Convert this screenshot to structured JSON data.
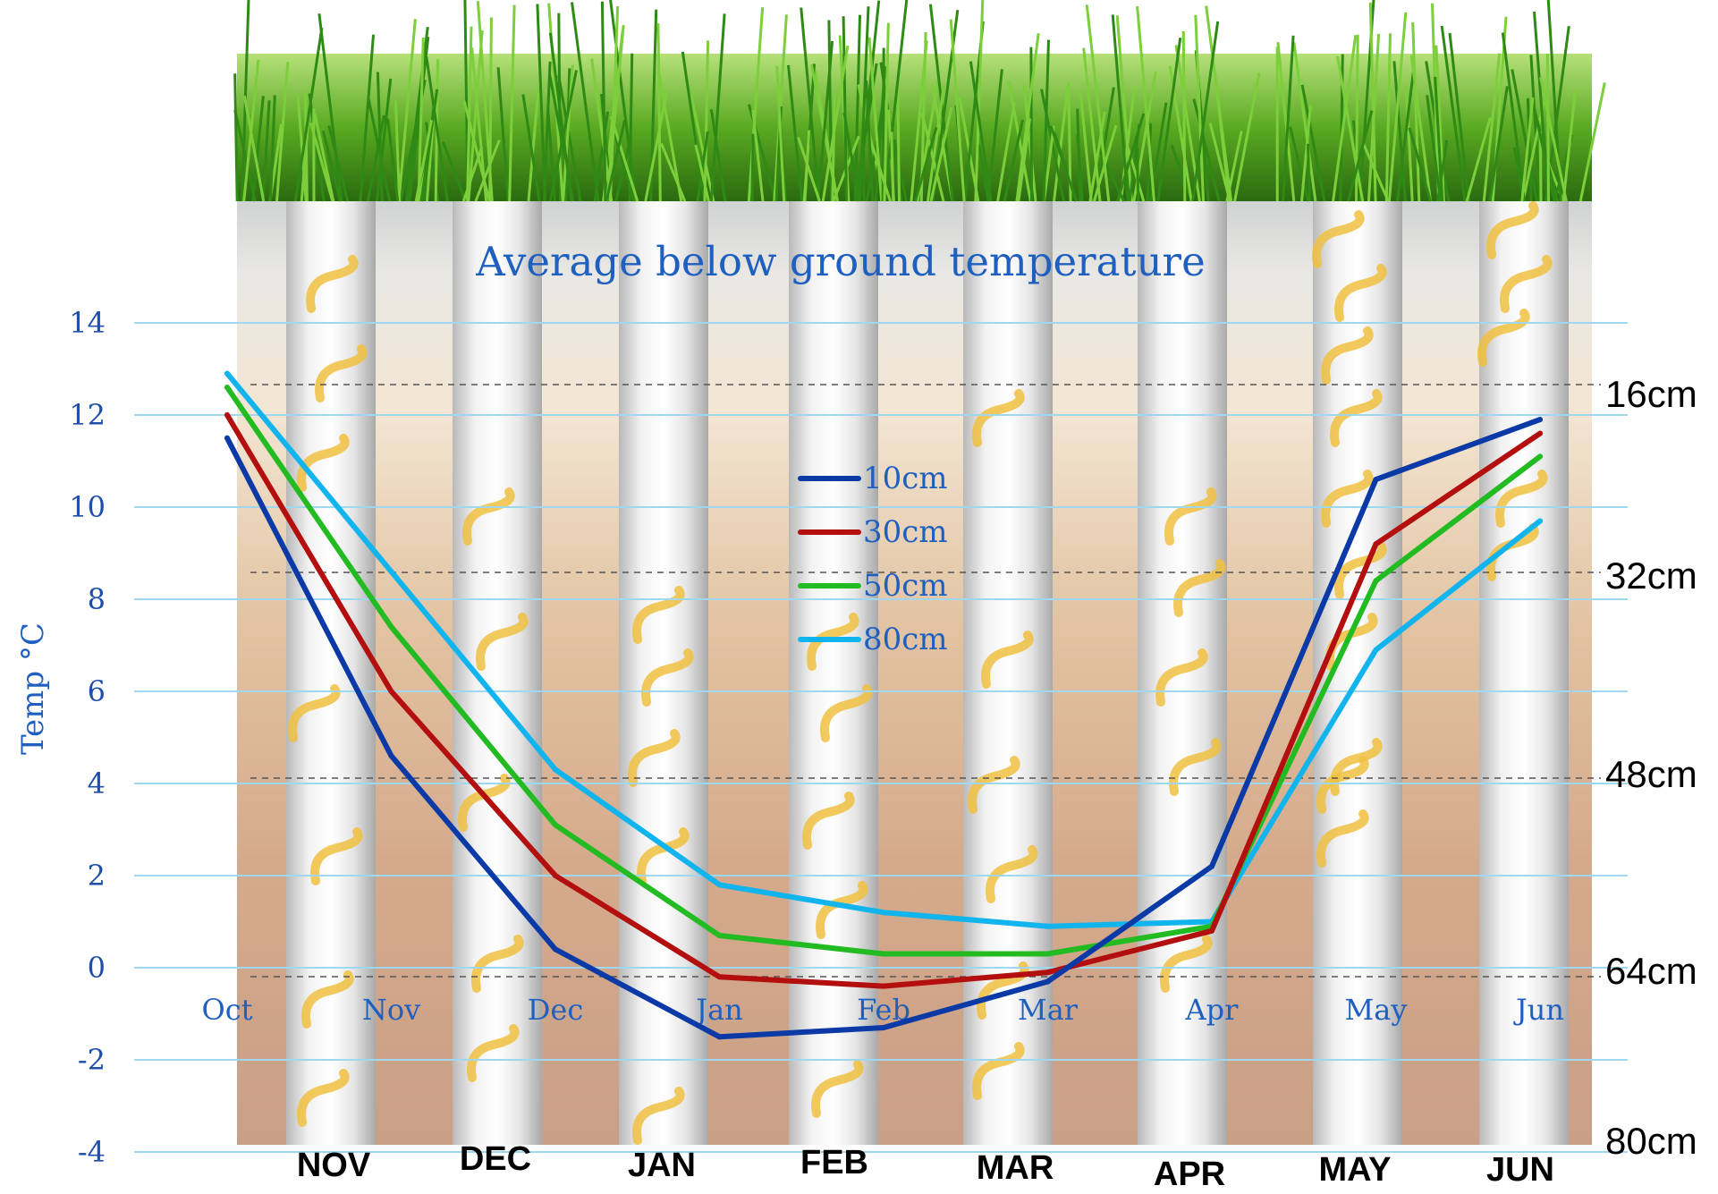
{
  "chart_data": {
    "type": "line",
    "title": "Average below ground temperature",
    "ylabel": "Temp °C",
    "xlabel": "",
    "ylim": [
      -4,
      14
    ],
    "yticks": [
      14,
      12,
      10,
      8,
      6,
      4,
      2,
      0,
      -2,
      -4
    ],
    "categories": [
      "Oct",
      "Nov",
      "Dec",
      "Jan",
      "Feb",
      "Mar",
      "Apr",
      "May",
      "Jun"
    ],
    "series": [
      {
        "name": "10cm",
        "color": "#0b3aa6",
        "values": [
          11.5,
          4.6,
          0.4,
          -1.5,
          -1.3,
          -0.3,
          2.2,
          10.6,
          11.9
        ]
      },
      {
        "name": "30cm",
        "color": "#b30f0f",
        "values": [
          12.0,
          6.0,
          2.0,
          -0.2,
          -0.4,
          -0.1,
          0.8,
          9.2,
          11.6
        ]
      },
      {
        "name": "50cm",
        "color": "#22bb22",
        "values": [
          12.6,
          7.4,
          3.1,
          0.7,
          0.3,
          0.3,
          0.9,
          8.4,
          11.1
        ]
      },
      {
        "name": "80cm",
        "color": "#12b4ee",
        "values": [
          12.9,
          8.6,
          4.3,
          1.8,
          1.2,
          0.9,
          1.0,
          6.9,
          9.7
        ]
      }
    ],
    "grid": true,
    "legend_position": "center"
  },
  "month_labels": [
    "NOV",
    "DEC",
    "JAN",
    "FEB",
    "MAR",
    "APR",
    "MAY",
    "JUN"
  ],
  "depth_labels": [
    "16cm",
    "32cm",
    "48cm",
    "64cm",
    "80cm"
  ],
  "colors": {
    "grass_dark": "#2f8a15",
    "grass_light": "#7ccf3a",
    "soil_top": "#e6e0d6",
    "soil_mid": "#d9b48e",
    "soil_bottom": "#c79a7e",
    "tube": "#eeeeee",
    "grub": "#f0c040",
    "gridline": "#9fd6f0"
  }
}
